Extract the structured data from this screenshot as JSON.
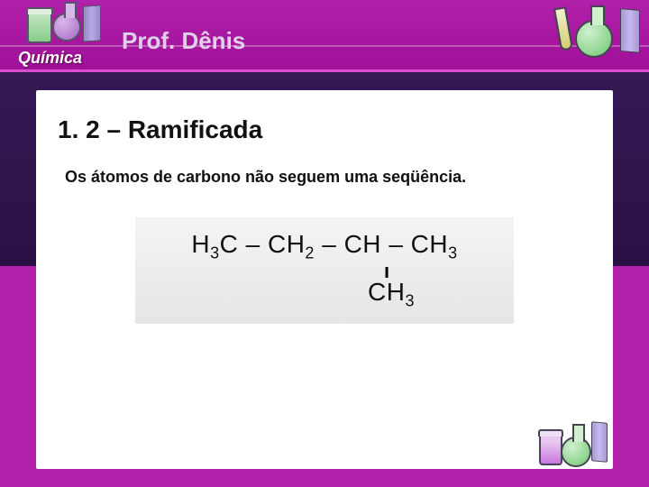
{
  "header": {
    "subject": "Química",
    "professor": "Prof. Dênis"
  },
  "content": {
    "section_title": "1. 2 – Ramificada",
    "section_text": "Os átomos de carbono não seguem uma seqüência.",
    "formula": {
      "groups": [
        "H₃C",
        "CH₂",
        "CH",
        "CH₃"
      ],
      "branch": "CH₃",
      "bond_h": "–",
      "bond_v": "ı"
    }
  },
  "colors": {
    "brand_primary": "#b020a8",
    "brand_dark": "#2a1144",
    "text": "#111111",
    "formula_bg": "#ececec"
  }
}
